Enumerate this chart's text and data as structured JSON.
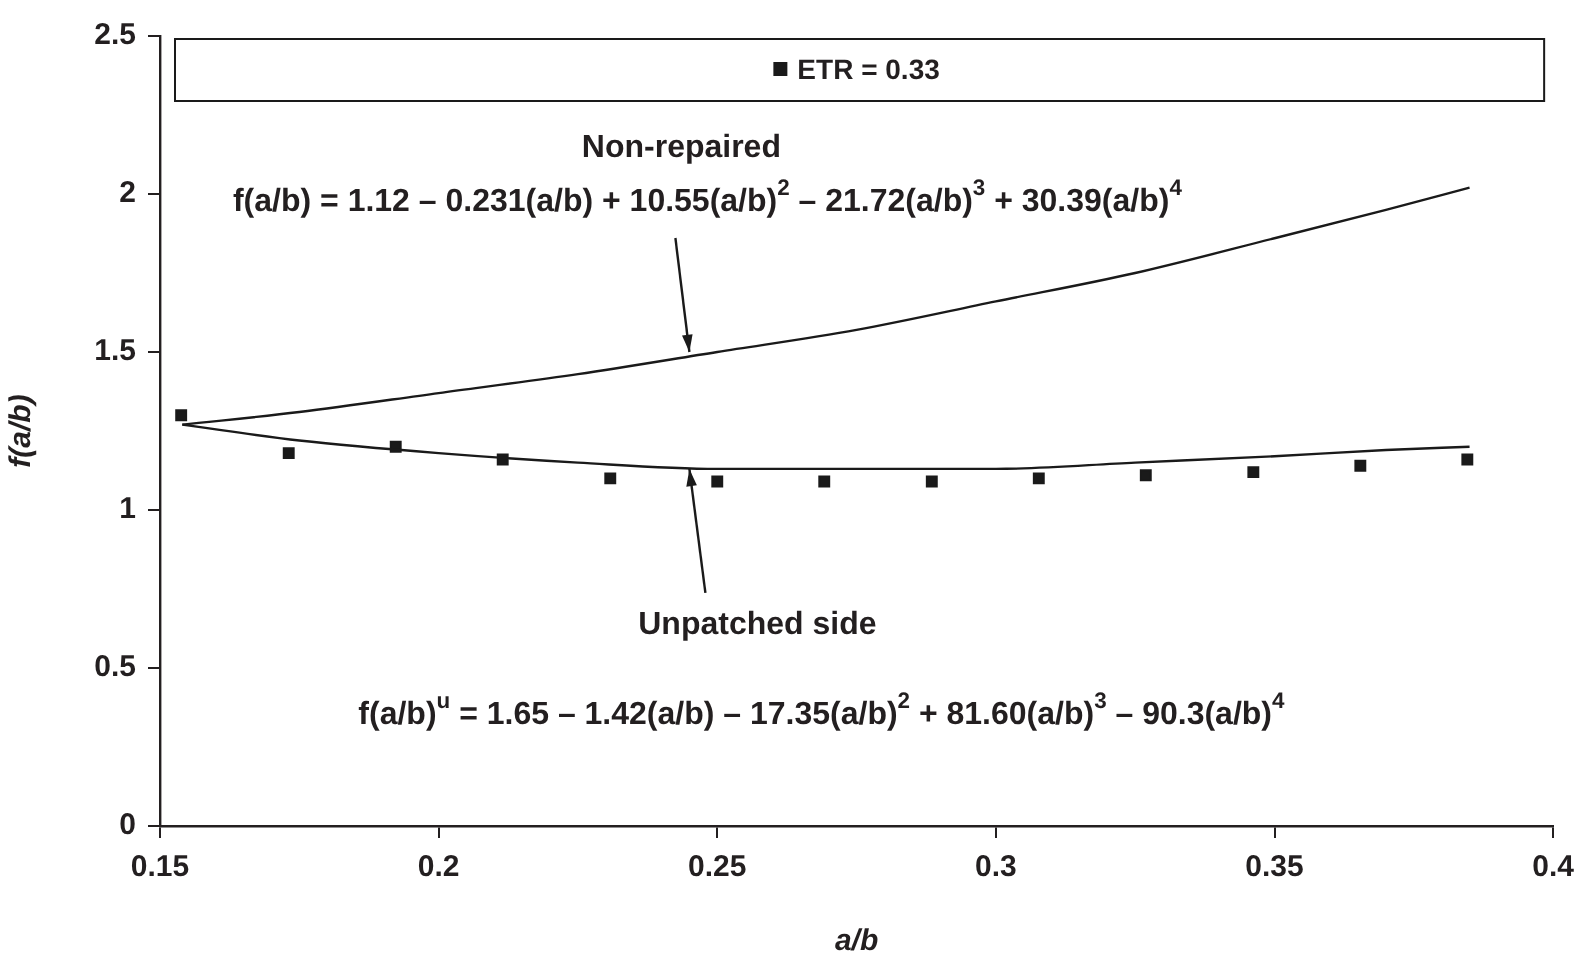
{
  "chart_data": {
    "type": "line",
    "xlabel": "a/b",
    "ylabel": "f(a/b)",
    "xlim": [
      0.15,
      0.4
    ],
    "xticks": [
      0.15,
      0.2,
      0.25,
      0.3,
      0.35,
      0.4
    ],
    "ylim": [
      0,
      2.5
    ],
    "yticks": [
      0,
      0.5,
      1,
      1.5,
      2,
      2.5
    ],
    "grid": false,
    "legend": "top",
    "series": [
      {
        "color": "#1a1a1a",
        "x": [
          0.154,
          0.175,
          0.2,
          0.225,
          0.25,
          0.275,
          0.3,
          0.325,
          0.35,
          0.37,
          0.385
        ],
        "values": [
          1.27,
          1.31,
          1.37,
          1.43,
          1.5,
          1.57,
          1.66,
          1.75,
          1.86,
          1.95,
          2.02
        ]
      },
      {
        "color": "#1a1a1a",
        "x": [
          0.154,
          0.175,
          0.2,
          0.225,
          0.25,
          0.275,
          0.3,
          0.325,
          0.35,
          0.37,
          0.385
        ],
        "values": [
          1.27,
          1.22,
          1.18,
          1.15,
          1.13,
          1.13,
          1.13,
          1.15,
          1.17,
          1.19,
          1.2
        ]
      },
      {
        "type": "scatter",
        "name": "ETR = 0.33",
        "color": "#1a1a1a",
        "marker": "square",
        "x": [
          0.1538,
          0.1731,
          0.1923,
          0.2115,
          0.2308,
          0.25,
          0.2692,
          0.2885,
          0.3077,
          0.3269,
          0.3462,
          0.3654,
          0.3846
        ],
        "values": [
          1.3,
          1.18,
          1.2,
          1.16,
          1.1,
          1.09,
          1.09,
          1.09,
          1.1,
          1.11,
          1.12,
          1.14,
          1.16
        ]
      }
    ],
    "annotations": [
      "Non-repaired",
      {
        "text": "f(a/b) = 1.12 – 0.231(a/b) + 10.55(a/b)$^{2}$ – 21.72(a/b)$^{3}$ + 30.39(a/b)$^{4}$",
        "x": 0.245,
        "y": 1.5
      },
      {
        "text": "Unpatched side",
        "x": 0.245,
        "y": 1.13
      },
      "f(a/b)$^{u}$ = 1.65 – 1.42(a/b) – 17.35(a/b)$^{2}$ + 81.60(a/b)$^{3}$ – 90.3(a/b)$^{4}$"
    ]
  }
}
